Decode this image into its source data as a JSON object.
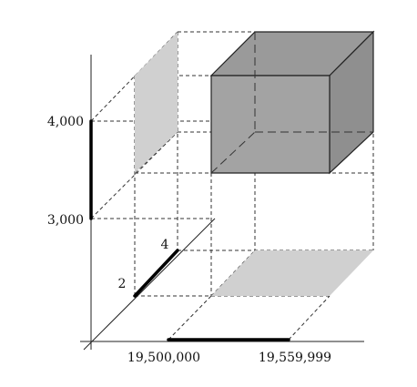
{
  "axes": {
    "vertical": {
      "tick_labels": [
        "4,000",
        "3,000"
      ]
    },
    "depth": {
      "tick_labels": [
        "4",
        "2"
      ]
    },
    "horizontal": {
      "tick_labels": [
        "19,500,000",
        "19,559,999"
      ]
    }
  },
  "colors": {
    "cube_front": "#a3a3a3",
    "cube_top": "#9a9a9a",
    "cube_side": "#8f8f8f",
    "projection": "#d0d0d0",
    "range_bar": "#000000"
  }
}
